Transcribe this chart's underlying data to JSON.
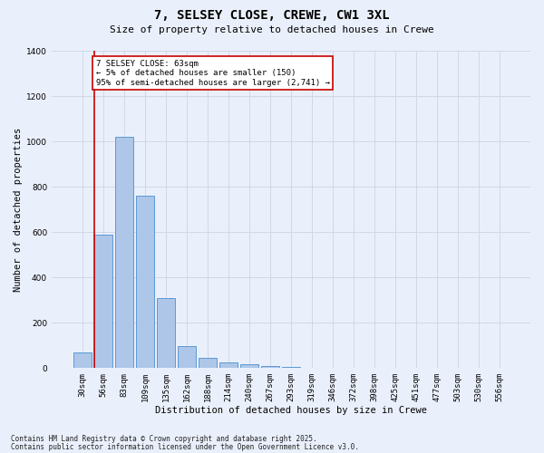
{
  "title1": "7, SELSEY CLOSE, CREWE, CW1 3XL",
  "title2": "Size of property relative to detached houses in Crewe",
  "xlabel": "Distribution of detached houses by size in Crewe",
  "ylabel": "Number of detached properties",
  "categories": [
    "30sqm",
    "56sqm",
    "83sqm",
    "109sqm",
    "135sqm",
    "162sqm",
    "188sqm",
    "214sqm",
    "240sqm",
    "267sqm",
    "293sqm",
    "319sqm",
    "346sqm",
    "372sqm",
    "398sqm",
    "425sqm",
    "451sqm",
    "477sqm",
    "503sqm",
    "530sqm",
    "556sqm"
  ],
  "bar_heights": [
    70,
    590,
    1020,
    760,
    310,
    95,
    45,
    25,
    15,
    8,
    5,
    0,
    0,
    0,
    0,
    0,
    0,
    0,
    0,
    0,
    0
  ],
  "bar_color": "#aec6e8",
  "bar_edge_color": "#5b9bd5",
  "grid_color": "#d0d8e8",
  "background_color": "#eaf0fb",
  "red_line_x": 1,
  "red_line_color": "#cc0000",
  "annotation_text": "7 SELSEY CLOSE: 63sqm\n← 5% of detached houses are smaller (150)\n95% of semi-detached houses are larger (2,741) →",
  "annotation_box_color": "#ffffff",
  "annotation_box_edge": "#cc0000",
  "ylim": [
    0,
    1400
  ],
  "yticks": [
    0,
    200,
    400,
    600,
    800,
    1000,
    1200,
    1400
  ],
  "footer1": "Contains HM Land Registry data © Crown copyright and database right 2025.",
  "footer2": "Contains public sector information licensed under the Open Government Licence v3.0.",
  "title1_fontsize": 10,
  "title2_fontsize": 8,
  "tick_fontsize": 6.5,
  "xlabel_fontsize": 7.5,
  "ylabel_fontsize": 7.5,
  "footer_fontsize": 5.5,
  "annot_fontsize": 6.5
}
